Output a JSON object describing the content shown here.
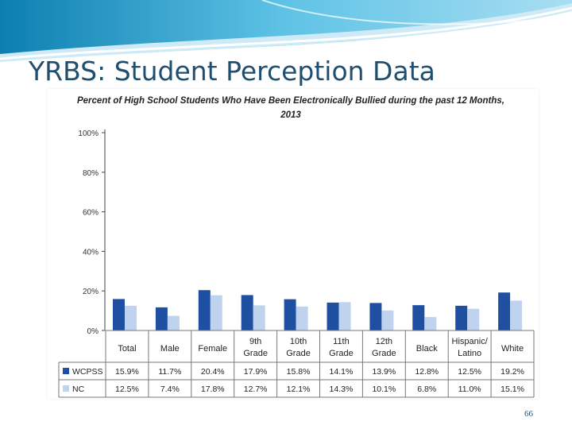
{
  "slide": {
    "title": "YRBS:  Student Perception Data",
    "page_number": "66"
  },
  "colors": {
    "wcpss": "#1f4fa0",
    "nc": "#bfd3ef",
    "title": "#1f4e6e"
  },
  "chart_data": {
    "type": "bar",
    "title_line1": "Percent of High School Students Who Have Been Electronically Bullied during the past 12 Months,",
    "title_line2": "2013",
    "categories": [
      [
        "Total"
      ],
      [
        "Male"
      ],
      [
        "Female"
      ],
      [
        "9th",
        "Grade"
      ],
      [
        "10th",
        "Grade"
      ],
      [
        "11th",
        "Grade"
      ],
      [
        "12th",
        "Grade"
      ],
      [
        "Black"
      ],
      [
        "Hispanic/",
        "Latino"
      ],
      [
        "White"
      ]
    ],
    "series": [
      {
        "name": "WCPSS",
        "values": [
          15.9,
          11.7,
          20.4,
          17.9,
          15.8,
          14.1,
          13.9,
          12.8,
          12.5,
          19.2
        ],
        "labels": [
          "15.9%",
          "11.7%",
          "20.4%",
          "17.9%",
          "15.8%",
          "14.1%",
          "13.9%",
          "12.8%",
          "12.5%",
          "19.2%"
        ]
      },
      {
        "name": "NC",
        "values": [
          12.5,
          7.4,
          17.8,
          12.7,
          12.1,
          14.3,
          10.1,
          6.8,
          11.0,
          15.1
        ],
        "labels": [
          "12.5%",
          "7.4%",
          "17.8%",
          "12.7%",
          "12.1%",
          "14.3%",
          "10.1%",
          "6.8%",
          "11.0%",
          "15.1%"
        ]
      }
    ],
    "yticks": [
      0,
      20,
      40,
      60,
      80,
      100
    ],
    "ytick_labels": [
      "0%",
      "20%",
      "40%",
      "60%",
      "80%",
      "100%"
    ],
    "ylim": [
      0,
      100
    ],
    "legend": "data-table-below",
    "grid": false
  }
}
